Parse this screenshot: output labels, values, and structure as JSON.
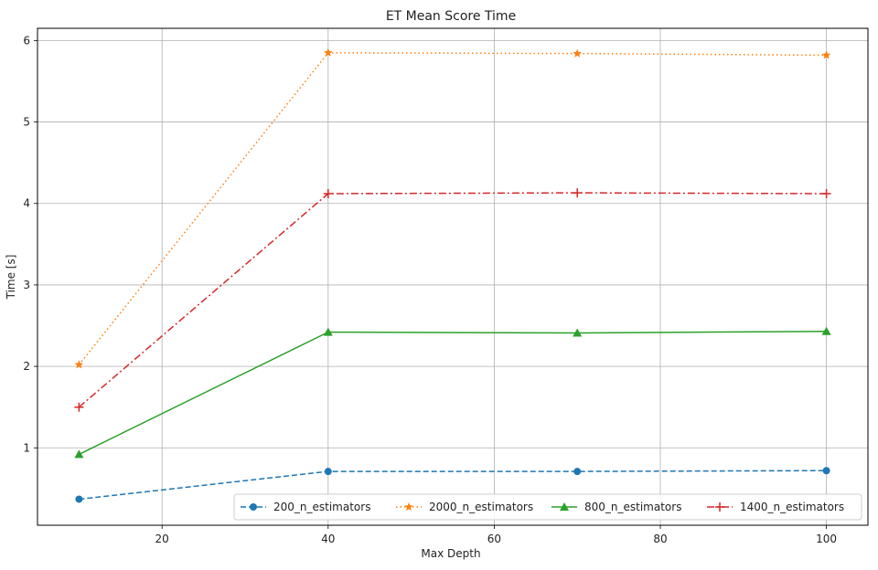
{
  "chart_data": {
    "type": "line",
    "title": "ET Mean Score Time",
    "xlabel": "Max Depth",
    "ylabel": "Time [s]",
    "x": [
      10,
      40,
      70,
      100
    ],
    "xlim": [
      5,
      105
    ],
    "ylim": [
      0.05,
      6.15
    ],
    "xticks": [
      20,
      40,
      60,
      80,
      100
    ],
    "yticks": [
      1,
      2,
      3,
      4,
      5,
      6
    ],
    "grid": true,
    "legend_position": "lower-right",
    "series": [
      {
        "name": "200_n_estimators",
        "values": [
          0.37,
          0.71,
          0.71,
          0.72
        ],
        "color": "#1f77b4",
        "dash": "dashed",
        "marker": "circle"
      },
      {
        "name": "2000_n_estimators",
        "values": [
          2.02,
          5.85,
          5.84,
          5.82
        ],
        "color": "#ff7f0e",
        "dash": "dotted",
        "marker": "star"
      },
      {
        "name": "800_n_estimators",
        "values": [
          0.92,
          2.42,
          2.41,
          2.43
        ],
        "color": "#2ca02c",
        "dash": "solid",
        "marker": "triangle"
      },
      {
        "name": "1400_n_estimators",
        "values": [
          1.5,
          4.12,
          4.13,
          4.12
        ],
        "color": "#d62728",
        "dash": "dashdot",
        "marker": "plus"
      }
    ]
  }
}
